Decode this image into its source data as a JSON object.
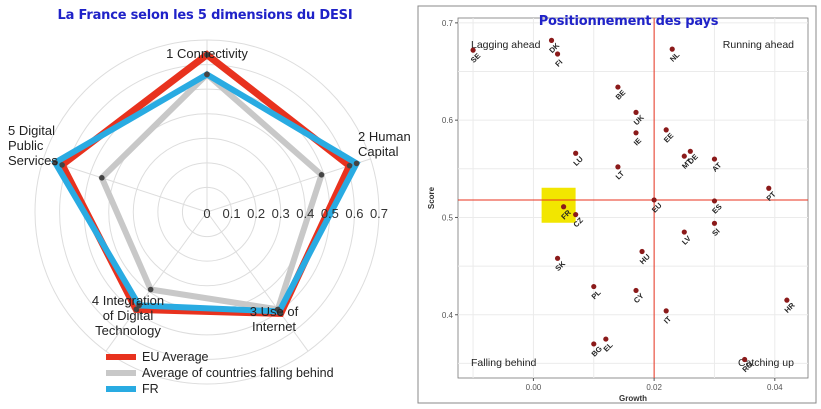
{
  "colors": {
    "title": "#1f22c8",
    "eu": "#e8321e",
    "behind": "#c8c8c8",
    "fr": "#29abe2",
    "point": "#8b1a1a",
    "refline": "#e8321e",
    "highlight": "#f2e600",
    "grid": "#ebebeb",
    "ring": "#dddddd"
  },
  "chart_data": [
    {
      "type": "radar",
      "title": "La France selon les 5 dimensions du DESI",
      "axes": [
        "1 Connectivity",
        "2 Human Capital",
        "3 Use of Internet",
        "4 Integration of Digital Technology",
        "5 Digital Public Services"
      ],
      "axis_label_lines": [
        [
          "1 Connectivity"
        ],
        [
          "2 Human",
          "Capital"
        ],
        [
          "3 Use of",
          "Internet"
        ],
        [
          "4 Integration",
          "of Digital",
          "Technology"
        ],
        [
          "5 Digital",
          "Public",
          "Services"
        ]
      ],
      "rlim": [
        0,
        0.7
      ],
      "ticks": [
        "0",
        "0.1",
        "0.2",
        "0.3",
        "0.4",
        "0.5",
        "0.6",
        "0.7"
      ],
      "tick_values": [
        0,
        0.1,
        0.2,
        0.3,
        0.4,
        0.5,
        0.6,
        0.7
      ],
      "series": [
        {
          "name": "EU Average",
          "values": [
            0.64,
            0.61,
            0.51,
            0.49,
            0.62
          ]
        },
        {
          "name": "Average of countries falling behind",
          "values": [
            0.56,
            0.49,
            0.49,
            0.39,
            0.45
          ]
        },
        {
          "name": "FR",
          "values": [
            0.56,
            0.64,
            0.5,
            0.47,
            0.65
          ]
        }
      ],
      "legend_position": "bottom-left"
    },
    {
      "type": "scatter",
      "title": "Positionnement des pays",
      "xlabel": "Growth",
      "ylabel": "Score",
      "xlim": [
        -0.0125,
        0.0455
      ],
      "ylim": [
        0.335,
        0.705
      ],
      "xticks": [
        "0.00",
        "0.02",
        "0.04"
      ],
      "xtick_values": [
        0,
        0.02,
        0.04
      ],
      "yticks": [
        "0.4",
        "0.5",
        "0.6",
        "0.7"
      ],
      "ytick_values": [
        0.4,
        0.5,
        0.6,
        0.7
      ],
      "grid": true,
      "reference_lines": {
        "x": 0.02,
        "y": 0.518
      },
      "quadrant_labels": {
        "top_left": "Lagging ahead",
        "top_right": "Running ahead",
        "bottom_left": "Falling behind",
        "bottom_right": "Catching up"
      },
      "highlight": "FR",
      "points": [
        {
          "label": "SE",
          "x": -0.01,
          "y": 0.672
        },
        {
          "label": "DK",
          "x": 0.003,
          "y": 0.682
        },
        {
          "label": "FI",
          "x": 0.004,
          "y": 0.668
        },
        {
          "label": "NL",
          "x": 0.023,
          "y": 0.673
        },
        {
          "label": "BE",
          "x": 0.014,
          "y": 0.634
        },
        {
          "label": "UK",
          "x": 0.017,
          "y": 0.608
        },
        {
          "label": "IE",
          "x": 0.017,
          "y": 0.587
        },
        {
          "label": "EE",
          "x": 0.022,
          "y": 0.59
        },
        {
          "label": "DE",
          "x": 0.026,
          "y": 0.568
        },
        {
          "label": "MT",
          "x": 0.025,
          "y": 0.563
        },
        {
          "label": "AT",
          "x": 0.03,
          "y": 0.56
        },
        {
          "label": "LU",
          "x": 0.007,
          "y": 0.566
        },
        {
          "label": "LT",
          "x": 0.014,
          "y": 0.552
        },
        {
          "label": "PT",
          "x": 0.039,
          "y": 0.53
        },
        {
          "label": "EU",
          "x": 0.02,
          "y": 0.518
        },
        {
          "label": "ES",
          "x": 0.03,
          "y": 0.517
        },
        {
          "label": "FR",
          "x": 0.005,
          "y": 0.511
        },
        {
          "label": "CZ",
          "x": 0.007,
          "y": 0.503
        },
        {
          "label": "SI",
          "x": 0.03,
          "y": 0.494
        },
        {
          "label": "LV",
          "x": 0.025,
          "y": 0.485
        },
        {
          "label": "HU",
          "x": 0.018,
          "y": 0.465
        },
        {
          "label": "SK",
          "x": 0.004,
          "y": 0.458
        },
        {
          "label": "PL",
          "x": 0.01,
          "y": 0.429
        },
        {
          "label": "CY",
          "x": 0.017,
          "y": 0.425
        },
        {
          "label": "HR",
          "x": 0.042,
          "y": 0.415
        },
        {
          "label": "IT",
          "x": 0.022,
          "y": 0.404
        },
        {
          "label": "EL",
          "x": 0.012,
          "y": 0.375
        },
        {
          "label": "BG",
          "x": 0.01,
          "y": 0.37
        },
        {
          "label": "RO",
          "x": 0.035,
          "y": 0.354
        }
      ]
    }
  ]
}
